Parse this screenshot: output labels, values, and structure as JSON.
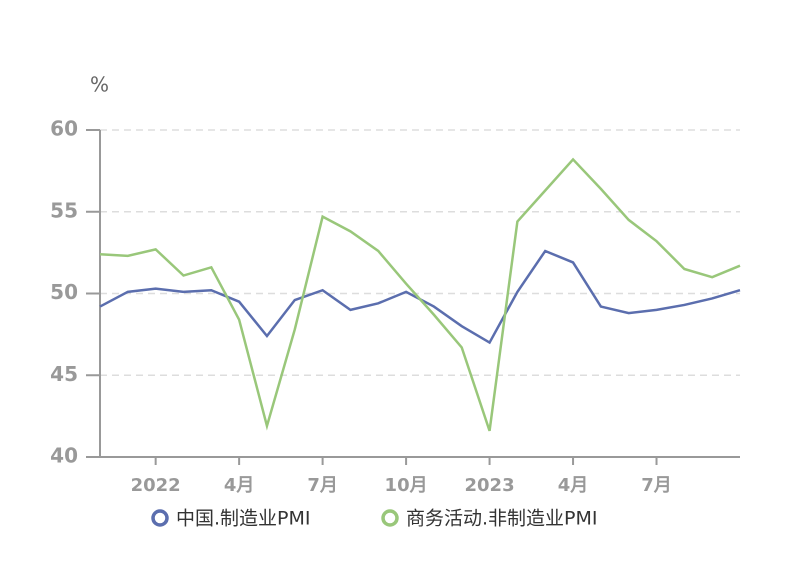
{
  "chart_data": {
    "type": "line",
    "y_label": "%",
    "categories": [
      null,
      null,
      "2022",
      null,
      null,
      "4月",
      null,
      null,
      "7月",
      null,
      null,
      "10月",
      null,
      null,
      "2023",
      null,
      null,
      "4月",
      null,
      null,
      "7月",
      null,
      null,
      null
    ],
    "series": [
      {
        "name": "中国.制造业PMI",
        "color": "#5b6eae",
        "values": [
          49.2,
          50.1,
          50.3,
          50.1,
          50.2,
          49.5,
          47.4,
          49.6,
          50.2,
          49.0,
          49.4,
          50.1,
          49.2,
          48.0,
          47.0,
          50.1,
          52.6,
          51.9,
          49.2,
          48.8,
          49.0,
          49.3,
          49.7,
          50.2
        ]
      },
      {
        "name": "商务活动.非制造业PMI",
        "color": "#99c77a",
        "values": [
          52.4,
          52.3,
          52.7,
          51.1,
          51.6,
          48.4,
          41.9,
          47.8,
          54.7,
          53.8,
          52.6,
          50.6,
          48.7,
          46.7,
          41.6,
          54.4,
          56.3,
          58.2,
          56.4,
          54.5,
          53.2,
          51.5,
          51.0,
          51.7
        ]
      }
    ],
    "ylim": [
      40,
      60
    ],
    "yticks": [
      40,
      45,
      50,
      55,
      60
    ],
    "grid": true
  }
}
